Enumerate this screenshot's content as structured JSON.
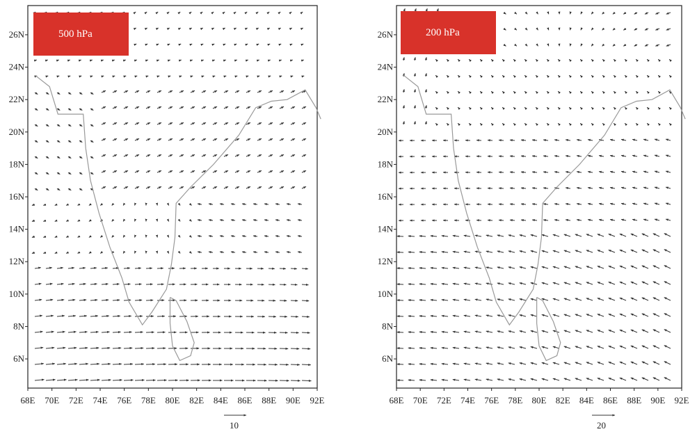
{
  "panels": [
    {
      "title": "500 hPa",
      "reference_vector": "10",
      "x_ticks": [
        "68E",
        "70E",
        "72E",
        "74E",
        "76E",
        "78E",
        "80E",
        "82E",
        "84E",
        "86E",
        "88E",
        "90E",
        "92E"
      ],
      "y_ticks": [
        "6N",
        "8N",
        "10N",
        "12N",
        "14N",
        "16N",
        "18N",
        "20N",
        "22N",
        "24N",
        "26N"
      ]
    },
    {
      "title": "200 hPa",
      "reference_vector": "20",
      "x_ticks": [
        "68E",
        "70E",
        "72E",
        "74E",
        "76E",
        "78E",
        "80E",
        "82E",
        "84E",
        "86E",
        "88E",
        "90E",
        "92E"
      ],
      "y_ticks": [
        "6N",
        "8N",
        "10N",
        "12N",
        "14N",
        "16N",
        "18N",
        "20N",
        "22N",
        "24N",
        "26N"
      ]
    }
  ],
  "colors": {
    "label_box": "#d8322a",
    "vectors": "#333333",
    "coastline": "#999999",
    "frame": "#222222"
  }
}
